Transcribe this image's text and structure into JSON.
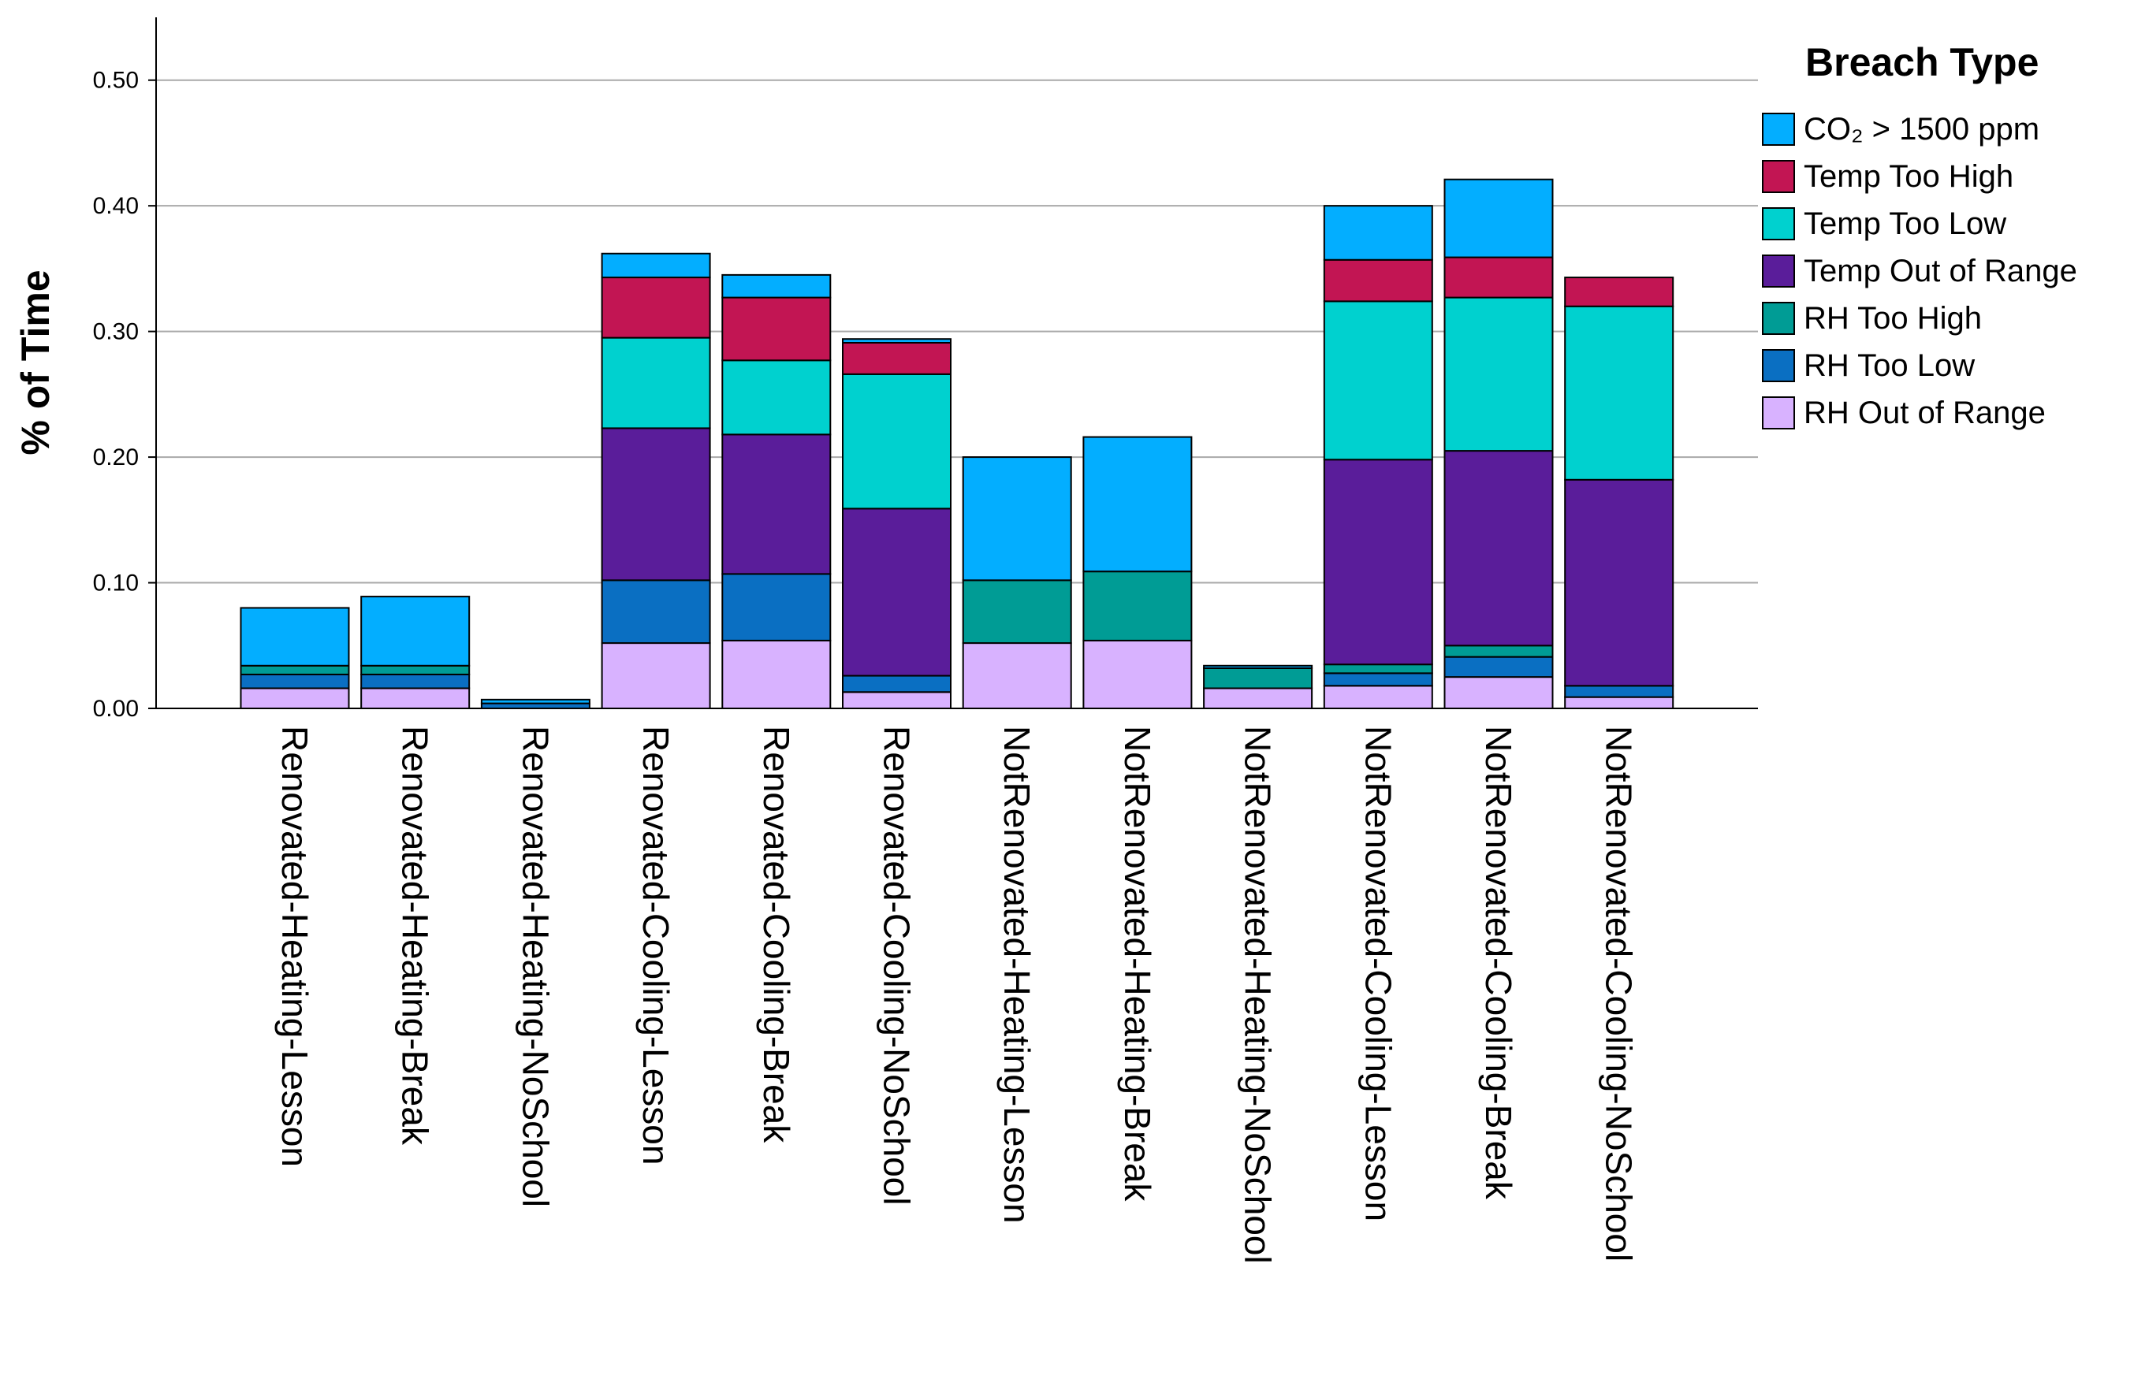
{
  "chart_data": {
    "type": "bar",
    "stacked": true,
    "title": "",
    "xlabel": "",
    "ylabel": "% of Time",
    "ylim": [
      0,
      0.55
    ],
    "yticks": [
      "0.00",
      "0.10",
      "0.20",
      "0.30",
      "0.40",
      "0.50"
    ],
    "grid": "horizontal",
    "legend": {
      "title": "Breach Type",
      "position": "top-right"
    },
    "categories": [
      "Renovated-Heating-Lesson",
      "Renovated-Heating-Break",
      "Renovated-Heating-NoSchool",
      "Renovated-Cooling-Lesson",
      "Renovated-Cooling-Break",
      "Renovated-Cooling-NoSchool",
      "NotRenovated-Heating-Lesson",
      "NotRenovated-Heating-Break",
      "NotRenovated-Heating-NoSchool",
      "NotRenovated-Cooling-Lesson",
      "NotRenovated-Cooling-Break",
      "NotRenovated-Cooling-NoSchool"
    ],
    "series": [
      {
        "name": "RH Out of Range",
        "color": "#D8B2FF",
        "values": [
          0.016,
          0.016,
          0.0,
          0.052,
          0.054,
          0.013,
          0.052,
          0.054,
          0.016,
          0.018,
          0.025,
          0.009
        ]
      },
      {
        "name": "RH Too Low",
        "color": "#0A6FC2",
        "values": [
          0.011,
          0.011,
          0.004,
          0.05,
          0.053,
          0.013,
          0.0,
          0.0,
          0.0,
          0.01,
          0.016,
          0.009
        ]
      },
      {
        "name": "RH Too High",
        "color": "#009C95",
        "values": [
          0.007,
          0.007,
          0.0,
          0.0,
          0.0,
          0.0,
          0.05,
          0.055,
          0.016,
          0.007,
          0.009,
          0.0
        ]
      },
      {
        "name": "Temp Out of Range",
        "color": "#5A1D9A",
        "values": [
          0.0,
          0.0,
          0.0,
          0.121,
          0.111,
          0.133,
          0.0,
          0.0,
          0.0,
          0.163,
          0.155,
          0.164
        ]
      },
      {
        "name": "Temp Too Low",
        "color": "#00D1CF",
        "values": [
          0.0,
          0.0,
          0.0,
          0.072,
          0.059,
          0.107,
          0.0,
          0.0,
          0.0,
          0.126,
          0.122,
          0.138
        ]
      },
      {
        "name": "Temp Too High",
        "color": "#C21553",
        "values": [
          0.0,
          0.0,
          0.0,
          0.048,
          0.05,
          0.025,
          0.0,
          0.0,
          0.0,
          0.033,
          0.032,
          0.023
        ]
      },
      {
        "name": "CO₂ > 1500 ppm",
        "color": "#03AEFF",
        "values": [
          0.046,
          0.055,
          0.003,
          0.019,
          0.018,
          0.003,
          0.098,
          0.107,
          0.002,
          0.043,
          0.062,
          0.0
        ]
      }
    ],
    "legend_order": [
      "CO₂ > 1500 ppm",
      "Temp Too High",
      "Temp Too Low",
      "Temp Out of Range",
      "RH Too High",
      "RH Too Low",
      "RH Out of Range"
    ]
  }
}
